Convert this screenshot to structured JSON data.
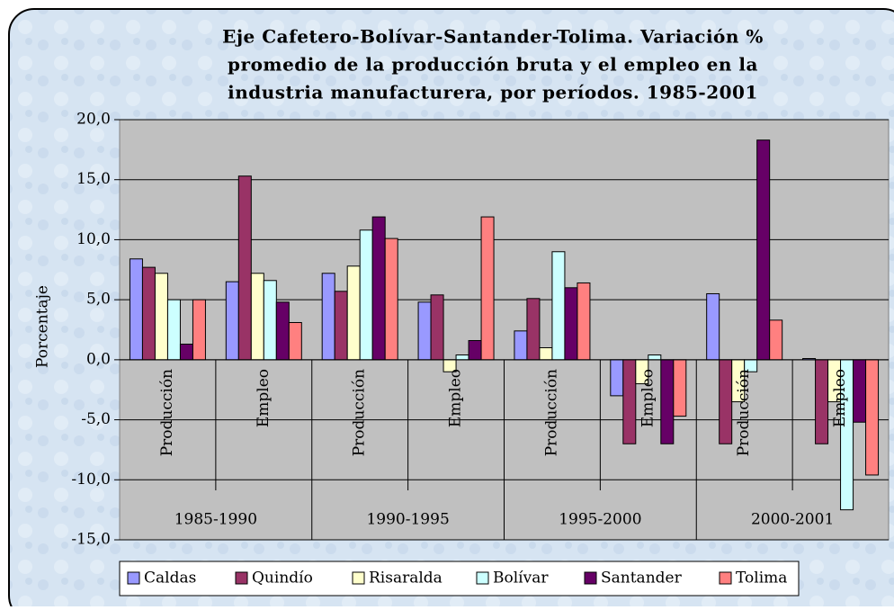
{
  "chart_data": {
    "type": "bar",
    "title": [
      "Eje Cafetero-Bolívar-Santander-Tolima. Variación %",
      "promedio de la producción bruta y el empleo en la",
      "industria manufacturera, por períodos. 1985-2001"
    ],
    "y_label": "Porcentaje",
    "categories": [
      "Producción",
      "Empleo",
      "Producción",
      "Empleo",
      "Producción",
      "Empleo",
      "Producción",
      "Empleo"
    ],
    "groups": [
      "1985-1990",
      "1990-1995",
      "1995-2000",
      "2000-2001"
    ],
    "series": [
      {
        "name": "Caldas",
        "color": "#9999ff",
        "values": [
          8.4,
          6.5,
          7.2,
          4.8,
          2.4,
          -3.0,
          5.5,
          0.1
        ]
      },
      {
        "name": "Quindío",
        "color": "#993366",
        "values": [
          7.7,
          15.3,
          5.7,
          5.4,
          5.1,
          -7.0,
          -7.0,
          -7.0
        ]
      },
      {
        "name": "Risaralda",
        "color": "#ffffcc",
        "values": [
          7.2,
          7.2,
          7.8,
          -1.0,
          1.0,
          -2.0,
          -3.5,
          -3.5
        ]
      },
      {
        "name": "Bolívar",
        "color": "#ccffff",
        "values": [
          5.0,
          6.6,
          10.8,
          0.4,
          9.0,
          0.4,
          -1.0,
          -12.5
        ]
      },
      {
        "name": "Santander",
        "color": "#660066",
        "values": [
          1.3,
          4.8,
          11.9,
          1.6,
          6.0,
          -7.0,
          18.3,
          -5.2
        ]
      },
      {
        "name": "Tolima",
        "color": "#ff8080",
        "values": [
          5.0,
          3.1,
          10.1,
          11.9,
          6.4,
          -4.7,
          3.3,
          -9.6
        ]
      }
    ],
    "ylim": [
      -15,
      20
    ],
    "yticks": [
      {
        "value": -15,
        "label": "-15,0"
      },
      {
        "value": -10,
        "label": "-10,0"
      },
      {
        "value": -5,
        "label": "-5,0"
      },
      {
        "value": 0,
        "label": "0,0"
      },
      {
        "value": 5,
        "label": "5,0"
      },
      {
        "value": 10,
        "label": "10,0"
      },
      {
        "value": 15,
        "label": "15,0"
      },
      {
        "value": 20,
        "label": "20,0"
      }
    ],
    "grid": true,
    "legend": "bottom"
  }
}
